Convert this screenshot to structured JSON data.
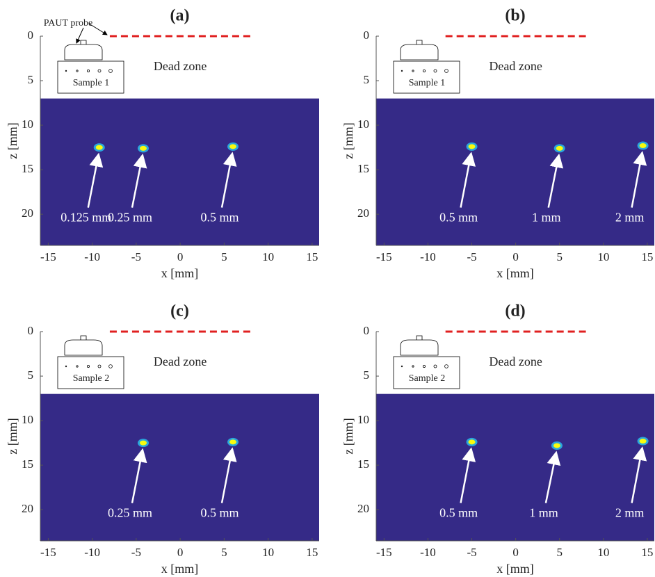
{
  "chart_data": [
    {
      "type": "image",
      "title": "(a)",
      "xlabel": "x [mm]",
      "ylabel": "z [mm]",
      "xlim": [
        -15.9,
        15.8
      ],
      "ylim": [
        0,
        23.5
      ],
      "y_reversed": true,
      "xticks": [
        -15,
        -10,
        -5,
        0,
        5,
        10,
        15
      ],
      "yticks": [
        0,
        5,
        10,
        15,
        20
      ],
      "dead_zone_label": "Dead zone",
      "dead_zone_depth": 7,
      "probe_span": [
        -8,
        8
      ],
      "probe_label": "PAUT probe",
      "sample_label": "Sample 1",
      "background": "#352a87",
      "blob_color": "#f9fb0e",
      "halo_color": "#2aa6dc",
      "x": [
        -9.2,
        -4.2,
        6
      ],
      "values": [
        12.5,
        12.6,
        12.4
      ],
      "labels": [
        "0.125 mm",
        "0.25 mm",
        "0.5 mm"
      ]
    },
    {
      "type": "image",
      "title": "(b)",
      "xlabel": "x [mm]",
      "ylabel": "z [mm]",
      "xlim": [
        -15.9,
        15.8
      ],
      "ylim": [
        0,
        23.5
      ],
      "y_reversed": true,
      "xticks": [
        -15,
        -10,
        -5,
        0,
        5,
        10,
        15
      ],
      "yticks": [
        0,
        5,
        10,
        15,
        20
      ],
      "dead_zone_label": "Dead zone",
      "dead_zone_depth": 7,
      "probe_span": [
        -8,
        8
      ],
      "sample_label": "Sample 1",
      "background": "#352a87",
      "blob_color": "#f9fb0e",
      "halo_color": "#2aa6dc",
      "x": [
        -5,
        5,
        14.5
      ],
      "values": [
        12.4,
        12.6,
        12.3
      ],
      "labels": [
        "0.5 mm",
        "1 mm",
        "2 mm"
      ]
    },
    {
      "type": "image",
      "title": "(c)",
      "xlabel": "x [mm]",
      "ylabel": "z [mm]",
      "xlim": [
        -15.9,
        15.8
      ],
      "ylim": [
        0,
        23.5
      ],
      "y_reversed": true,
      "xticks": [
        -15,
        -10,
        -5,
        0,
        5,
        10,
        15
      ],
      "yticks": [
        0,
        5,
        10,
        15,
        20
      ],
      "dead_zone_label": "Dead zone",
      "dead_zone_depth": 7,
      "probe_span": [
        -8,
        8
      ],
      "sample_label": "Sample 2",
      "background": "#352a87",
      "blob_color": "#f9fb0e",
      "halo_color": "#2aa6dc",
      "x": [
        -4.2,
        6
      ],
      "values": [
        12.5,
        12.4
      ],
      "labels": [
        "0.25 mm",
        "0.5 mm"
      ]
    },
    {
      "type": "image",
      "title": "(d)",
      "xlabel": "x [mm]",
      "ylabel": "z [mm]",
      "xlim": [
        -15.9,
        15.8
      ],
      "ylim": [
        0,
        23.5
      ],
      "y_reversed": true,
      "xticks": [
        -15,
        -10,
        -5,
        0,
        5,
        10,
        15
      ],
      "yticks": [
        0,
        5,
        10,
        15,
        20
      ],
      "dead_zone_label": "Dead zone",
      "dead_zone_depth": 7,
      "probe_span": [
        -8,
        8
      ],
      "sample_label": "Sample 2",
      "background": "#352a87",
      "blob_color": "#f9fb0e",
      "halo_color": "#2aa6dc",
      "x": [
        -5,
        4.7,
        14.5
      ],
      "values": [
        12.4,
        12.8,
        12.3
      ],
      "labels": [
        "0.5 mm",
        "1 mm",
        "2 mm"
      ]
    }
  ]
}
